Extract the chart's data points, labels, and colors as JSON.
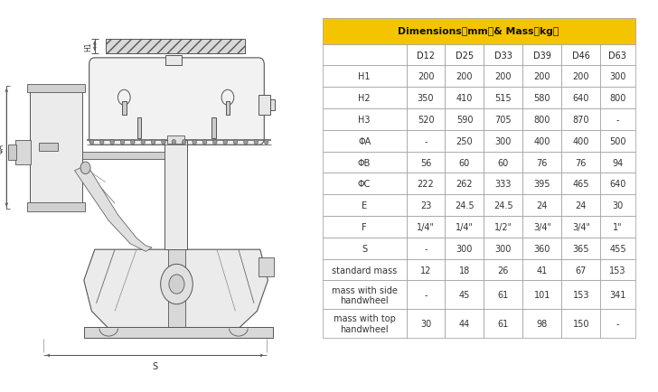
{
  "header_bg": "#F5C400",
  "col_headers": [
    "",
    "D12",
    "D25",
    "D33",
    "D39",
    "D46",
    "D63"
  ],
  "rows": [
    [
      "H1",
      "200",
      "200",
      "200",
      "200",
      "200",
      "300"
    ],
    [
      "H2",
      "350",
      "410",
      "515",
      "580",
      "640",
      "800"
    ],
    [
      "H3",
      "520",
      "590",
      "705",
      "800",
      "870",
      "-"
    ],
    [
      "ΦA",
      "-",
      "250",
      "300",
      "400",
      "400",
      "500"
    ],
    [
      "ΦB",
      "56",
      "60",
      "60",
      "76",
      "76",
      "94"
    ],
    [
      "ΦC",
      "222",
      "262",
      "333",
      "395",
      "465",
      "640"
    ],
    [
      "E",
      "23",
      "24.5",
      "24.5",
      "24",
      "24",
      "30"
    ],
    [
      "F",
      "1/4\"",
      "1/4\"",
      "1/2\"",
      "3/4\"",
      "3/4\"",
      "1\""
    ],
    [
      "S",
      "-",
      "300",
      "300",
      "360",
      "365",
      "455"
    ],
    [
      "standard mass",
      "12",
      "18",
      "26",
      "41",
      "67",
      "153"
    ],
    [
      "mass with side\nhandwheel",
      "-",
      "45",
      "61",
      "101",
      "153",
      "341"
    ],
    [
      "mass with top\nhandwheel",
      "30",
      "44",
      "61",
      "98",
      "150",
      "-"
    ]
  ],
  "border_color": "#999999",
  "text_color": "#333333",
  "fig_bg": "#ffffff",
  "title_text": "Dimensions（mm）& Mass（kg）",
  "line_color": "#555555",
  "draw_bg": "#ffffff"
}
